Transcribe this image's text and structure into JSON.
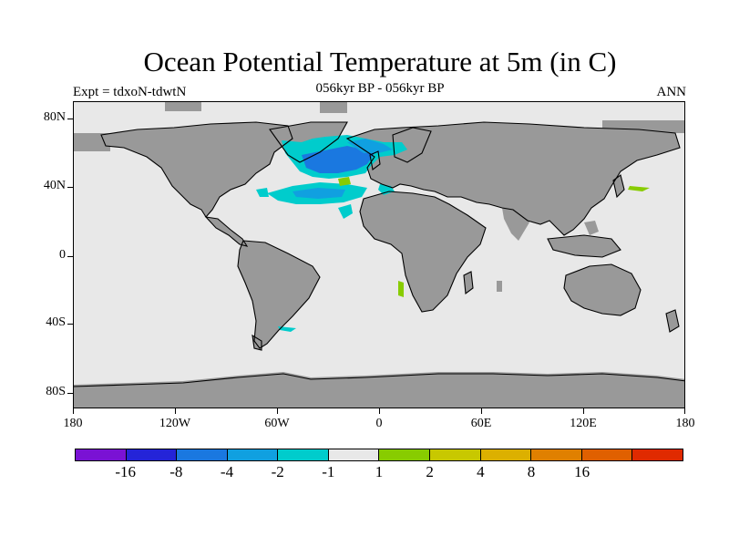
{
  "title": "Ocean Potential Temperature at 5m (in C)",
  "subtitle_center": "056kyr BP - 056kyr BP",
  "subtitle_left": "Expt = tdxoN-tdwtN",
  "subtitle_right": "ANN",
  "lat_labels": [
    "80N",
    "40N",
    "0",
    "40S",
    "80S"
  ],
  "lon_labels": [
    "180",
    "120W",
    "60W",
    "0",
    "60E",
    "120E",
    "180"
  ],
  "colorbar": {
    "colors": [
      "#7a12d4",
      "#2424d8",
      "#1a78e0",
      "#10a0e0",
      "#00cccc",
      "#e8e8e8",
      "#88cc00",
      "#c8c800",
      "#dcb000",
      "#e08000",
      "#e06000",
      "#e02a00"
    ],
    "labels": [
      "-16",
      "-8",
      "-4",
      "-2",
      "-1",
      "1",
      "2",
      "4",
      "8",
      "16"
    ]
  },
  "colors": {
    "ocean": "#e8e8e8",
    "land": "#999999",
    "coast": "#000000"
  }
}
